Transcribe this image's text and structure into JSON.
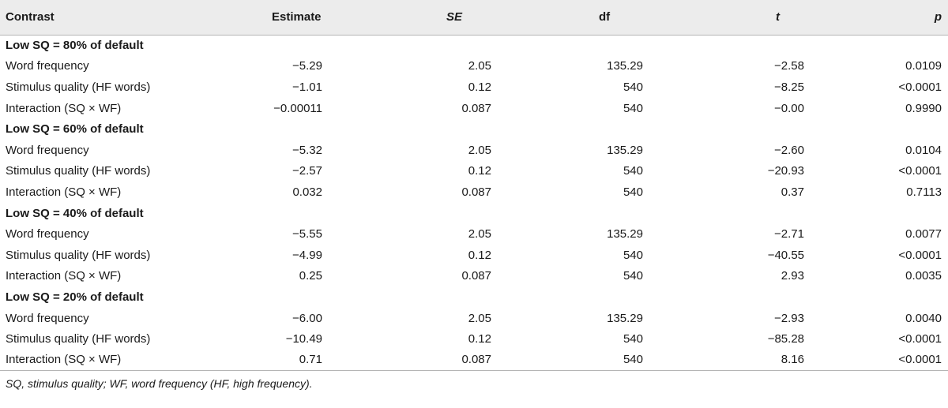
{
  "table": {
    "headers": {
      "contrast": "Contrast",
      "estimate": "Estimate",
      "se": "SE",
      "df": "df",
      "t": "t",
      "p": "p"
    },
    "groups": [
      {
        "title": "Low SQ = 80% of default",
        "rows": [
          {
            "contrast": "Word frequency",
            "estimate": "−5.29",
            "se": "2.05",
            "df": "135.29",
            "t": "−2.58",
            "p": "0.0109"
          },
          {
            "contrast": "Stimulus quality (HF words)",
            "estimate": "−1.01",
            "se": "0.12",
            "df": "540",
            "t": "−8.25",
            "p": "<0.0001"
          },
          {
            "contrast": "Interaction (SQ × WF)",
            "estimate": "−0.00011",
            "se": "0.087",
            "df": "540",
            "t": "−0.00",
            "p": "0.9990"
          }
        ]
      },
      {
        "title": "Low SQ = 60% of default",
        "rows": [
          {
            "contrast": "Word frequency",
            "estimate": "−5.32",
            "se": "2.05",
            "df": "135.29",
            "t": "−2.60",
            "p": "0.0104"
          },
          {
            "contrast": "Stimulus quality (HF words)",
            "estimate": "−2.57",
            "se": "0.12",
            "df": "540",
            "t": "−20.93",
            "p": "<0.0001"
          },
          {
            "contrast": "Interaction (SQ × WF)",
            "estimate": "0.032",
            "se": "0.087",
            "df": "540",
            "t": "0.37",
            "p": "0.7113"
          }
        ]
      },
      {
        "title": "Low SQ = 40% of default",
        "rows": [
          {
            "contrast": "Word frequency",
            "estimate": "−5.55",
            "se": "2.05",
            "df": "135.29",
            "t": "−2.71",
            "p": "0.0077"
          },
          {
            "contrast": "Stimulus quality (HF words)",
            "estimate": "−4.99",
            "se": "0.12",
            "df": "540",
            "t": "−40.55",
            "p": "<0.0001"
          },
          {
            "contrast": "Interaction (SQ × WF)",
            "estimate": "0.25",
            "se": "0.087",
            "df": "540",
            "t": "2.93",
            "p": "0.0035"
          }
        ]
      },
      {
        "title": "Low SQ = 20% of default",
        "rows": [
          {
            "contrast": "Word frequency",
            "estimate": "−6.00",
            "se": "2.05",
            "df": "135.29",
            "t": "−2.93",
            "p": "0.0040"
          },
          {
            "contrast": "Stimulus quality (HF words)",
            "estimate": "−10.49",
            "se": "0.12",
            "df": "540",
            "t": "−85.28",
            "p": "<0.0001"
          },
          {
            "contrast": "Interaction (SQ × WF)",
            "estimate": "0.71",
            "se": "0.087",
            "df": "540",
            "t": "8.16",
            "p": "<0.0001"
          }
        ]
      }
    ]
  },
  "footnote": "SQ, stimulus quality; WF, word frequency (HF, high frequency).",
  "colors": {
    "header_bg": "#ececec",
    "rule": "#b5b5b5",
    "text": "#1a1a1a"
  }
}
